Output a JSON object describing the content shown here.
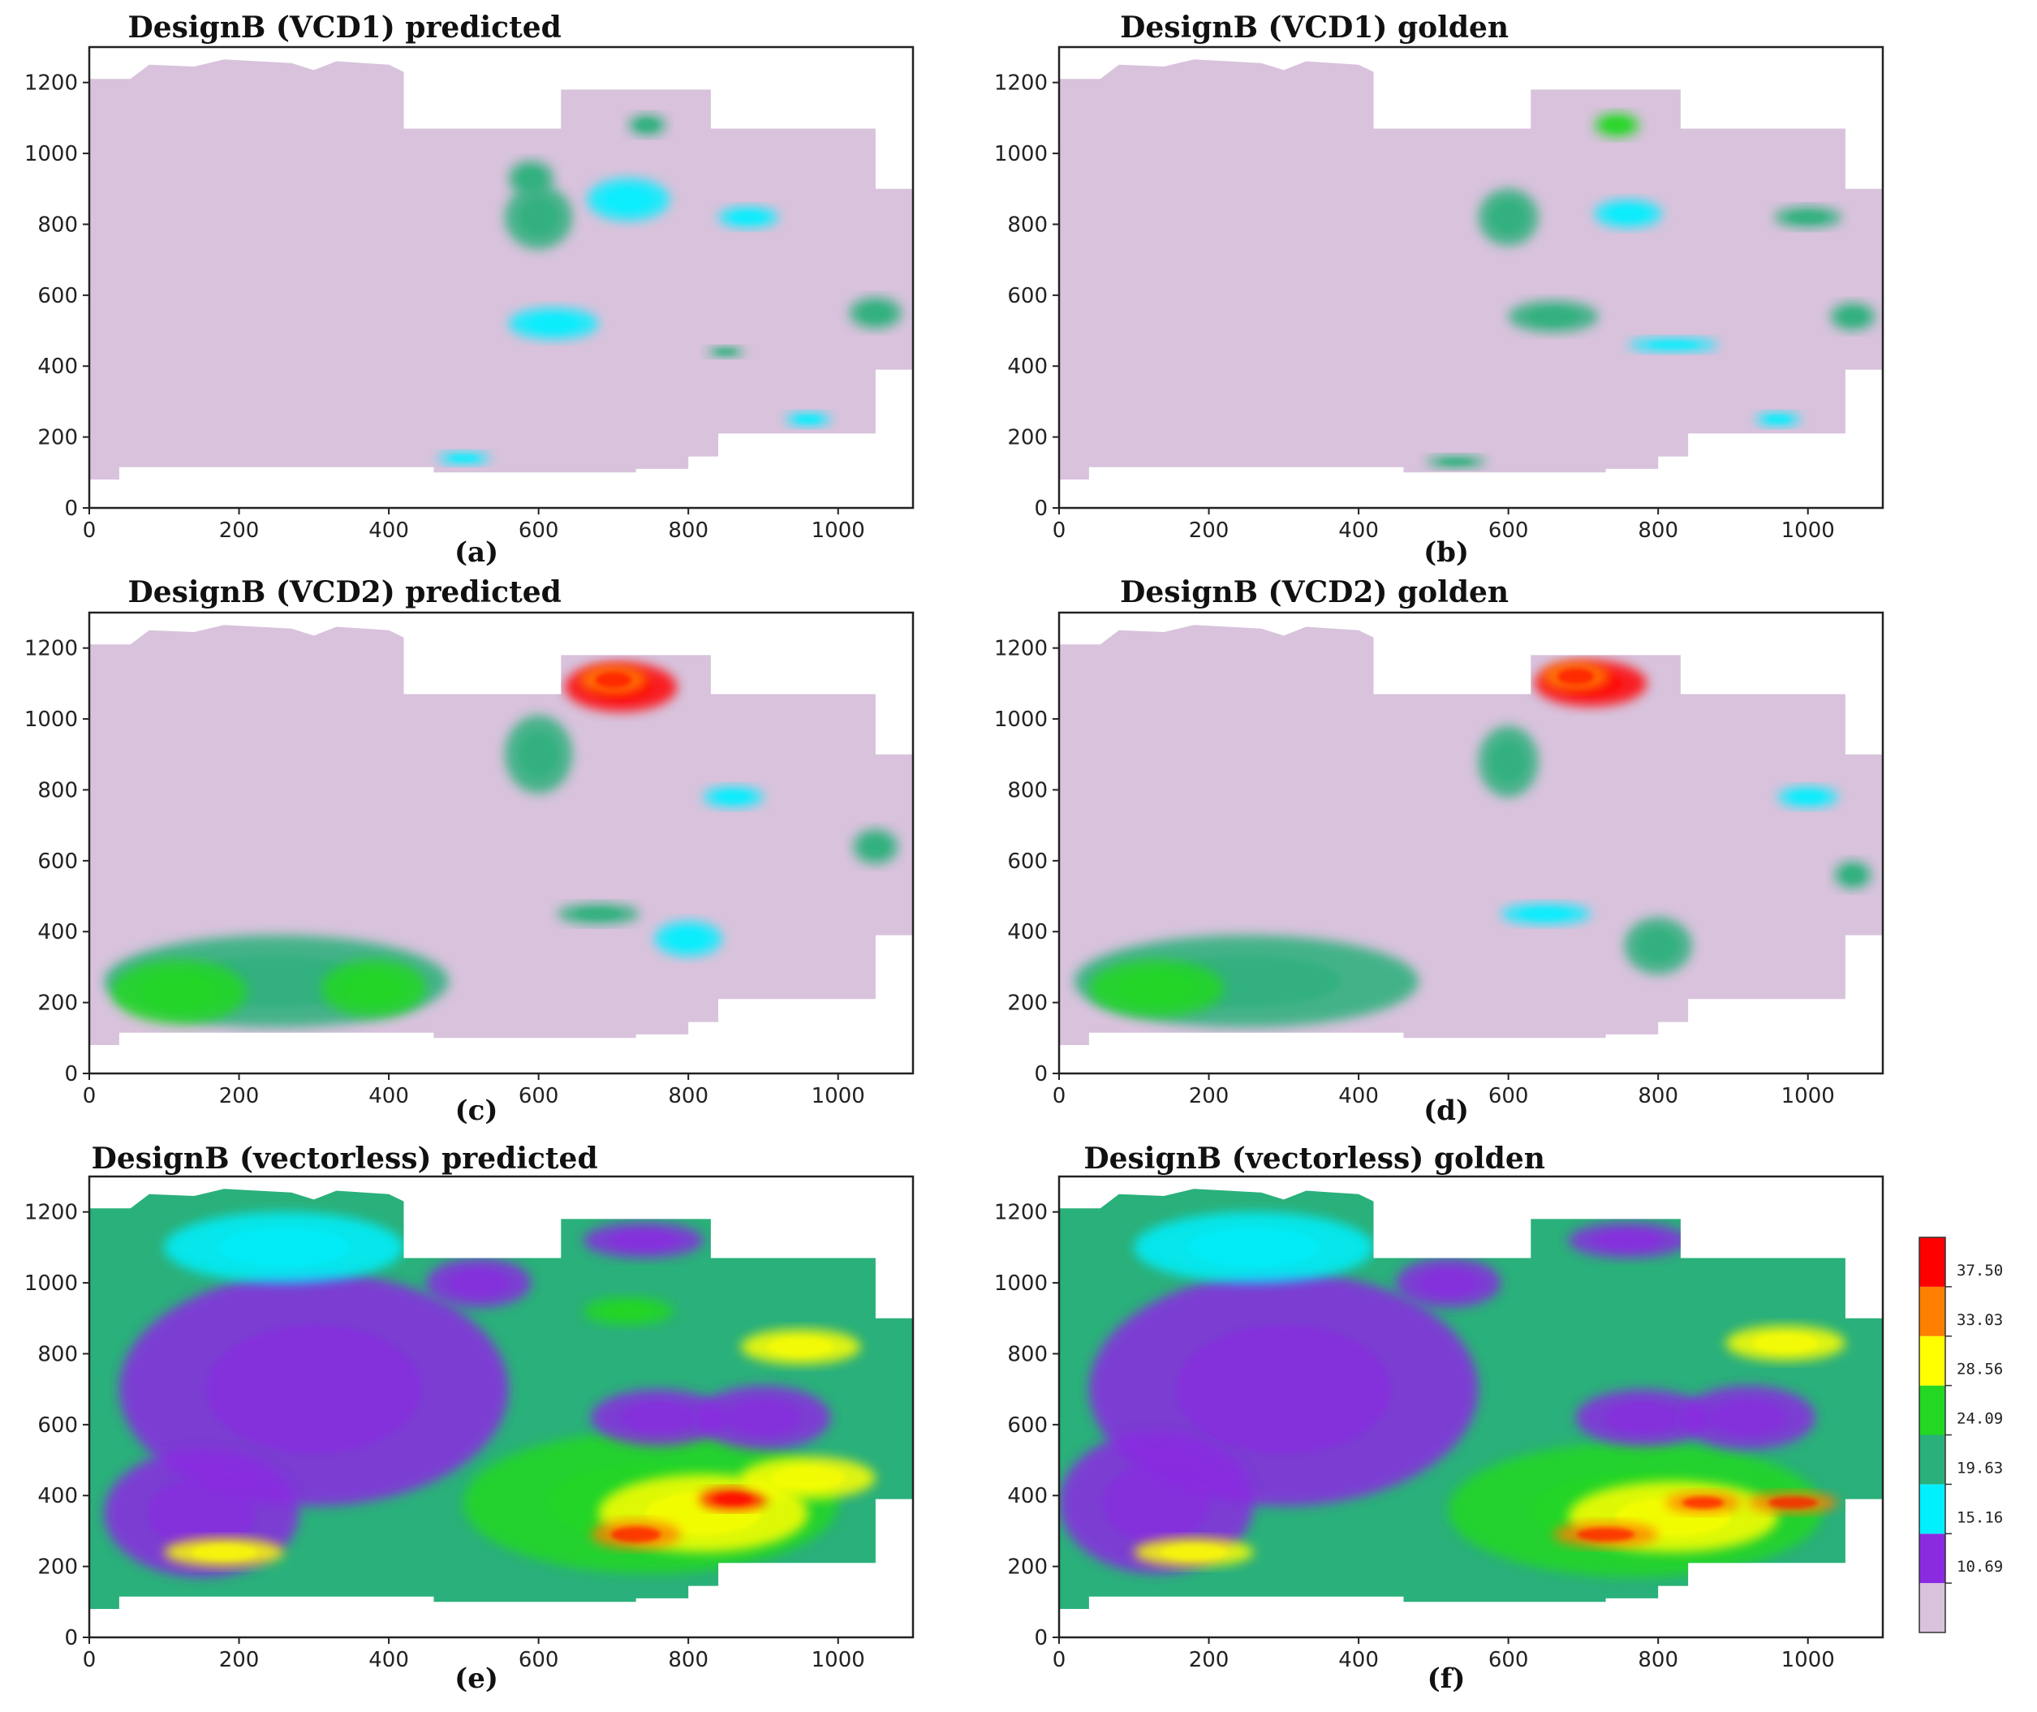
{
  "chart_data": [
    {
      "type": "heatmap",
      "panel_id": "a",
      "caption": "(a)",
      "title": "DesignB (VCD1) predicted",
      "xlabel": "",
      "ylabel": "",
      "xlim": [
        0,
        1100
      ],
      "ylim": [
        0,
        1300
      ],
      "x_ticks": [
        0,
        200,
        400,
        600,
        800,
        1000
      ],
      "y_ticks": [
        0,
        200,
        400,
        600,
        800,
        1000,
        1200
      ],
      "hotspots": [
        {
          "x": 600,
          "y": 820,
          "rx": 45,
          "ry": 90,
          "level": 3
        },
        {
          "x": 590,
          "y": 930,
          "rx": 30,
          "ry": 50,
          "level": 3
        },
        {
          "x": 745,
          "y": 1080,
          "rx": 25,
          "ry": 30,
          "level": 3
        },
        {
          "x": 620,
          "y": 520,
          "rx": 60,
          "ry": 45,
          "level": 2
        },
        {
          "x": 720,
          "y": 870,
          "rx": 55,
          "ry": 60,
          "level": 2
        },
        {
          "x": 880,
          "y": 820,
          "rx": 40,
          "ry": 30,
          "level": 2
        },
        {
          "x": 1050,
          "y": 550,
          "rx": 35,
          "ry": 45,
          "level": 3
        },
        {
          "x": 960,
          "y": 250,
          "rx": 30,
          "ry": 20,
          "level": 2
        },
        {
          "x": 500,
          "y": 140,
          "rx": 35,
          "ry": 18,
          "level": 2
        },
        {
          "x": 850,
          "y": 440,
          "rx": 25,
          "ry": 15,
          "level": 3
        }
      ]
    },
    {
      "type": "heatmap",
      "panel_id": "b",
      "caption": "(b)",
      "title": "DesignB (VCD1) golden",
      "xlabel": "",
      "ylabel": "",
      "xlim": [
        0,
        1100
      ],
      "ylim": [
        0,
        1300
      ],
      "x_ticks": [
        0,
        200,
        400,
        600,
        800,
        1000
      ],
      "y_ticks": [
        0,
        200,
        400,
        600,
        800,
        1000,
        1200
      ],
      "hotspots": [
        {
          "x": 600,
          "y": 820,
          "rx": 40,
          "ry": 80,
          "level": 3
        },
        {
          "x": 745,
          "y": 1080,
          "rx": 30,
          "ry": 35,
          "level": 4
        },
        {
          "x": 660,
          "y": 540,
          "rx": 60,
          "ry": 45,
          "level": 3
        },
        {
          "x": 820,
          "y": 460,
          "rx": 60,
          "ry": 20,
          "level": 2
        },
        {
          "x": 1000,
          "y": 820,
          "rx": 45,
          "ry": 30,
          "level": 3
        },
        {
          "x": 1060,
          "y": 540,
          "rx": 30,
          "ry": 40,
          "level": 3
        },
        {
          "x": 960,
          "y": 250,
          "rx": 30,
          "ry": 20,
          "level": 2
        },
        {
          "x": 530,
          "y": 130,
          "rx": 40,
          "ry": 18,
          "level": 3
        },
        {
          "x": 760,
          "y": 830,
          "rx": 45,
          "ry": 40,
          "level": 2
        }
      ]
    },
    {
      "type": "heatmap",
      "panel_id": "c",
      "caption": "(c)",
      "title": "DesignB (VCD2) predicted",
      "xlabel": "",
      "ylabel": "",
      "xlim": [
        0,
        1100
      ],
      "ylim": [
        0,
        1300
      ],
      "x_ticks": [
        0,
        200,
        400,
        600,
        800,
        1000
      ],
      "y_ticks": [
        0,
        200,
        400,
        600,
        800,
        1000,
        1200
      ],
      "hotspots": [
        {
          "x": 710,
          "y": 1090,
          "rx": 75,
          "ry": 70,
          "level": 7
        },
        {
          "x": 700,
          "y": 1110,
          "rx": 45,
          "ry": 40,
          "level": 6
        },
        {
          "x": 600,
          "y": 900,
          "rx": 45,
          "ry": 110,
          "level": 3
        },
        {
          "x": 250,
          "y": 260,
          "rx": 230,
          "ry": 130,
          "level": 3
        },
        {
          "x": 120,
          "y": 230,
          "rx": 90,
          "ry": 90,
          "level": 4
        },
        {
          "x": 380,
          "y": 240,
          "rx": 70,
          "ry": 80,
          "level": 4
        },
        {
          "x": 800,
          "y": 380,
          "rx": 45,
          "ry": 50,
          "level": 2
        },
        {
          "x": 680,
          "y": 450,
          "rx": 55,
          "ry": 30,
          "level": 3
        },
        {
          "x": 1050,
          "y": 640,
          "rx": 30,
          "ry": 50,
          "level": 3
        },
        {
          "x": 860,
          "y": 780,
          "rx": 40,
          "ry": 30,
          "level": 2
        }
      ]
    },
    {
      "type": "heatmap",
      "panel_id": "d",
      "caption": "(d)",
      "title": "DesignB (VCD2) golden",
      "xlabel": "",
      "ylabel": "",
      "xlim": [
        0,
        1100
      ],
      "ylim": [
        0,
        1300
      ],
      "x_ticks": [
        0,
        200,
        400,
        600,
        800,
        1000
      ],
      "y_ticks": [
        0,
        200,
        400,
        600,
        800,
        1000,
        1200
      ],
      "hotspots": [
        {
          "x": 710,
          "y": 1100,
          "rx": 75,
          "ry": 65,
          "level": 7
        },
        {
          "x": 690,
          "y": 1120,
          "rx": 45,
          "ry": 40,
          "level": 6
        },
        {
          "x": 600,
          "y": 880,
          "rx": 40,
          "ry": 100,
          "level": 3
        },
        {
          "x": 250,
          "y": 260,
          "rx": 230,
          "ry": 130,
          "level": 3
        },
        {
          "x": 130,
          "y": 240,
          "rx": 90,
          "ry": 80,
          "level": 4
        },
        {
          "x": 800,
          "y": 360,
          "rx": 45,
          "ry": 80,
          "level": 3
        },
        {
          "x": 650,
          "y": 450,
          "rx": 60,
          "ry": 30,
          "level": 2
        },
        {
          "x": 1060,
          "y": 560,
          "rx": 25,
          "ry": 40,
          "level": 3
        },
        {
          "x": 1000,
          "y": 780,
          "rx": 40,
          "ry": 30,
          "level": 2
        }
      ]
    },
    {
      "type": "heatmap",
      "panel_id": "e",
      "caption": "(e)",
      "title": "DesignB (vectorless) predicted",
      "xlabel": "",
      "ylabel": "",
      "xlim": [
        0,
        1100
      ],
      "ylim": [
        0,
        1300
      ],
      "x_ticks": [
        0,
        200,
        400,
        600,
        800,
        1000
      ],
      "y_ticks": [
        0,
        200,
        400,
        600,
        800,
        1000,
        1200
      ],
      "base_level": 3,
      "hotspots": [
        {
          "x": 300,
          "y": 700,
          "rx": 260,
          "ry": 330,
          "level": 1
        },
        {
          "x": 150,
          "y": 350,
          "rx": 130,
          "ry": 180,
          "level": 1
        },
        {
          "x": 750,
          "y": 380,
          "rx": 250,
          "ry": 200,
          "level": 4
        },
        {
          "x": 820,
          "y": 350,
          "rx": 140,
          "ry": 110,
          "level": 5
        },
        {
          "x": 730,
          "y": 290,
          "rx": 60,
          "ry": 40,
          "level": 6
        },
        {
          "x": 860,
          "y": 390,
          "rx": 45,
          "ry": 30,
          "level": 7
        },
        {
          "x": 960,
          "y": 450,
          "rx": 90,
          "ry": 60,
          "level": 5
        },
        {
          "x": 760,
          "y": 620,
          "rx": 90,
          "ry": 80,
          "level": 1
        },
        {
          "x": 900,
          "y": 620,
          "rx": 90,
          "ry": 90,
          "level": 1
        },
        {
          "x": 520,
          "y": 1000,
          "rx": 70,
          "ry": 70,
          "level": 1
        },
        {
          "x": 260,
          "y": 1100,
          "rx": 160,
          "ry": 100,
          "level": 2
        },
        {
          "x": 950,
          "y": 820,
          "rx": 80,
          "ry": 50,
          "level": 5
        },
        {
          "x": 720,
          "y": 920,
          "rx": 60,
          "ry": 40,
          "level": 4
        },
        {
          "x": 740,
          "y": 1120,
          "rx": 80,
          "ry": 50,
          "level": 1
        },
        {
          "x": 180,
          "y": 240,
          "rx": 80,
          "ry": 40,
          "level": 5
        }
      ]
    },
    {
      "type": "heatmap",
      "panel_id": "f",
      "caption": "(f)",
      "title": "DesignB (vectorless) golden",
      "xlabel": "",
      "ylabel": "",
      "xlim": [
        0,
        1100
      ],
      "ylim": [
        0,
        1300
      ],
      "x_ticks": [
        0,
        200,
        400,
        600,
        800,
        1000
      ],
      "y_ticks": [
        0,
        200,
        400,
        600,
        800,
        1000,
        1200
      ],
      "base_level": 3,
      "hotspots": [
        {
          "x": 300,
          "y": 700,
          "rx": 260,
          "ry": 330,
          "level": 1
        },
        {
          "x": 130,
          "y": 380,
          "rx": 130,
          "ry": 200,
          "level": 1
        },
        {
          "x": 770,
          "y": 360,
          "rx": 250,
          "ry": 190,
          "level": 4
        },
        {
          "x": 820,
          "y": 340,
          "rx": 140,
          "ry": 100,
          "level": 5
        },
        {
          "x": 730,
          "y": 290,
          "rx": 70,
          "ry": 35,
          "level": 6
        },
        {
          "x": 860,
          "y": 380,
          "rx": 50,
          "ry": 30,
          "level": 6
        },
        {
          "x": 980,
          "y": 380,
          "rx": 60,
          "ry": 30,
          "level": 6
        },
        {
          "x": 780,
          "y": 620,
          "rx": 90,
          "ry": 80,
          "level": 1
        },
        {
          "x": 920,
          "y": 620,
          "rx": 90,
          "ry": 90,
          "level": 1
        },
        {
          "x": 520,
          "y": 1000,
          "rx": 70,
          "ry": 70,
          "level": 1
        },
        {
          "x": 260,
          "y": 1100,
          "rx": 160,
          "ry": 100,
          "level": 2
        },
        {
          "x": 970,
          "y": 830,
          "rx": 80,
          "ry": 50,
          "level": 5
        },
        {
          "x": 760,
          "y": 1120,
          "rx": 80,
          "ry": 50,
          "level": 1
        },
        {
          "x": 180,
          "y": 240,
          "rx": 80,
          "ry": 40,
          "level": 5
        }
      ]
    }
  ],
  "colorbar": {
    "labels": [
      "37.50",
      "33.03",
      "28.56",
      "24.09",
      "19.63",
      "15.16",
      "10.69"
    ],
    "colors": [
      "#d8c2dc",
      "#8a2be2",
      "#00f0ff",
      "#2ab07a",
      "#22d822",
      "#ffff00",
      "#ff8000",
      "#ff0000"
    ]
  }
}
